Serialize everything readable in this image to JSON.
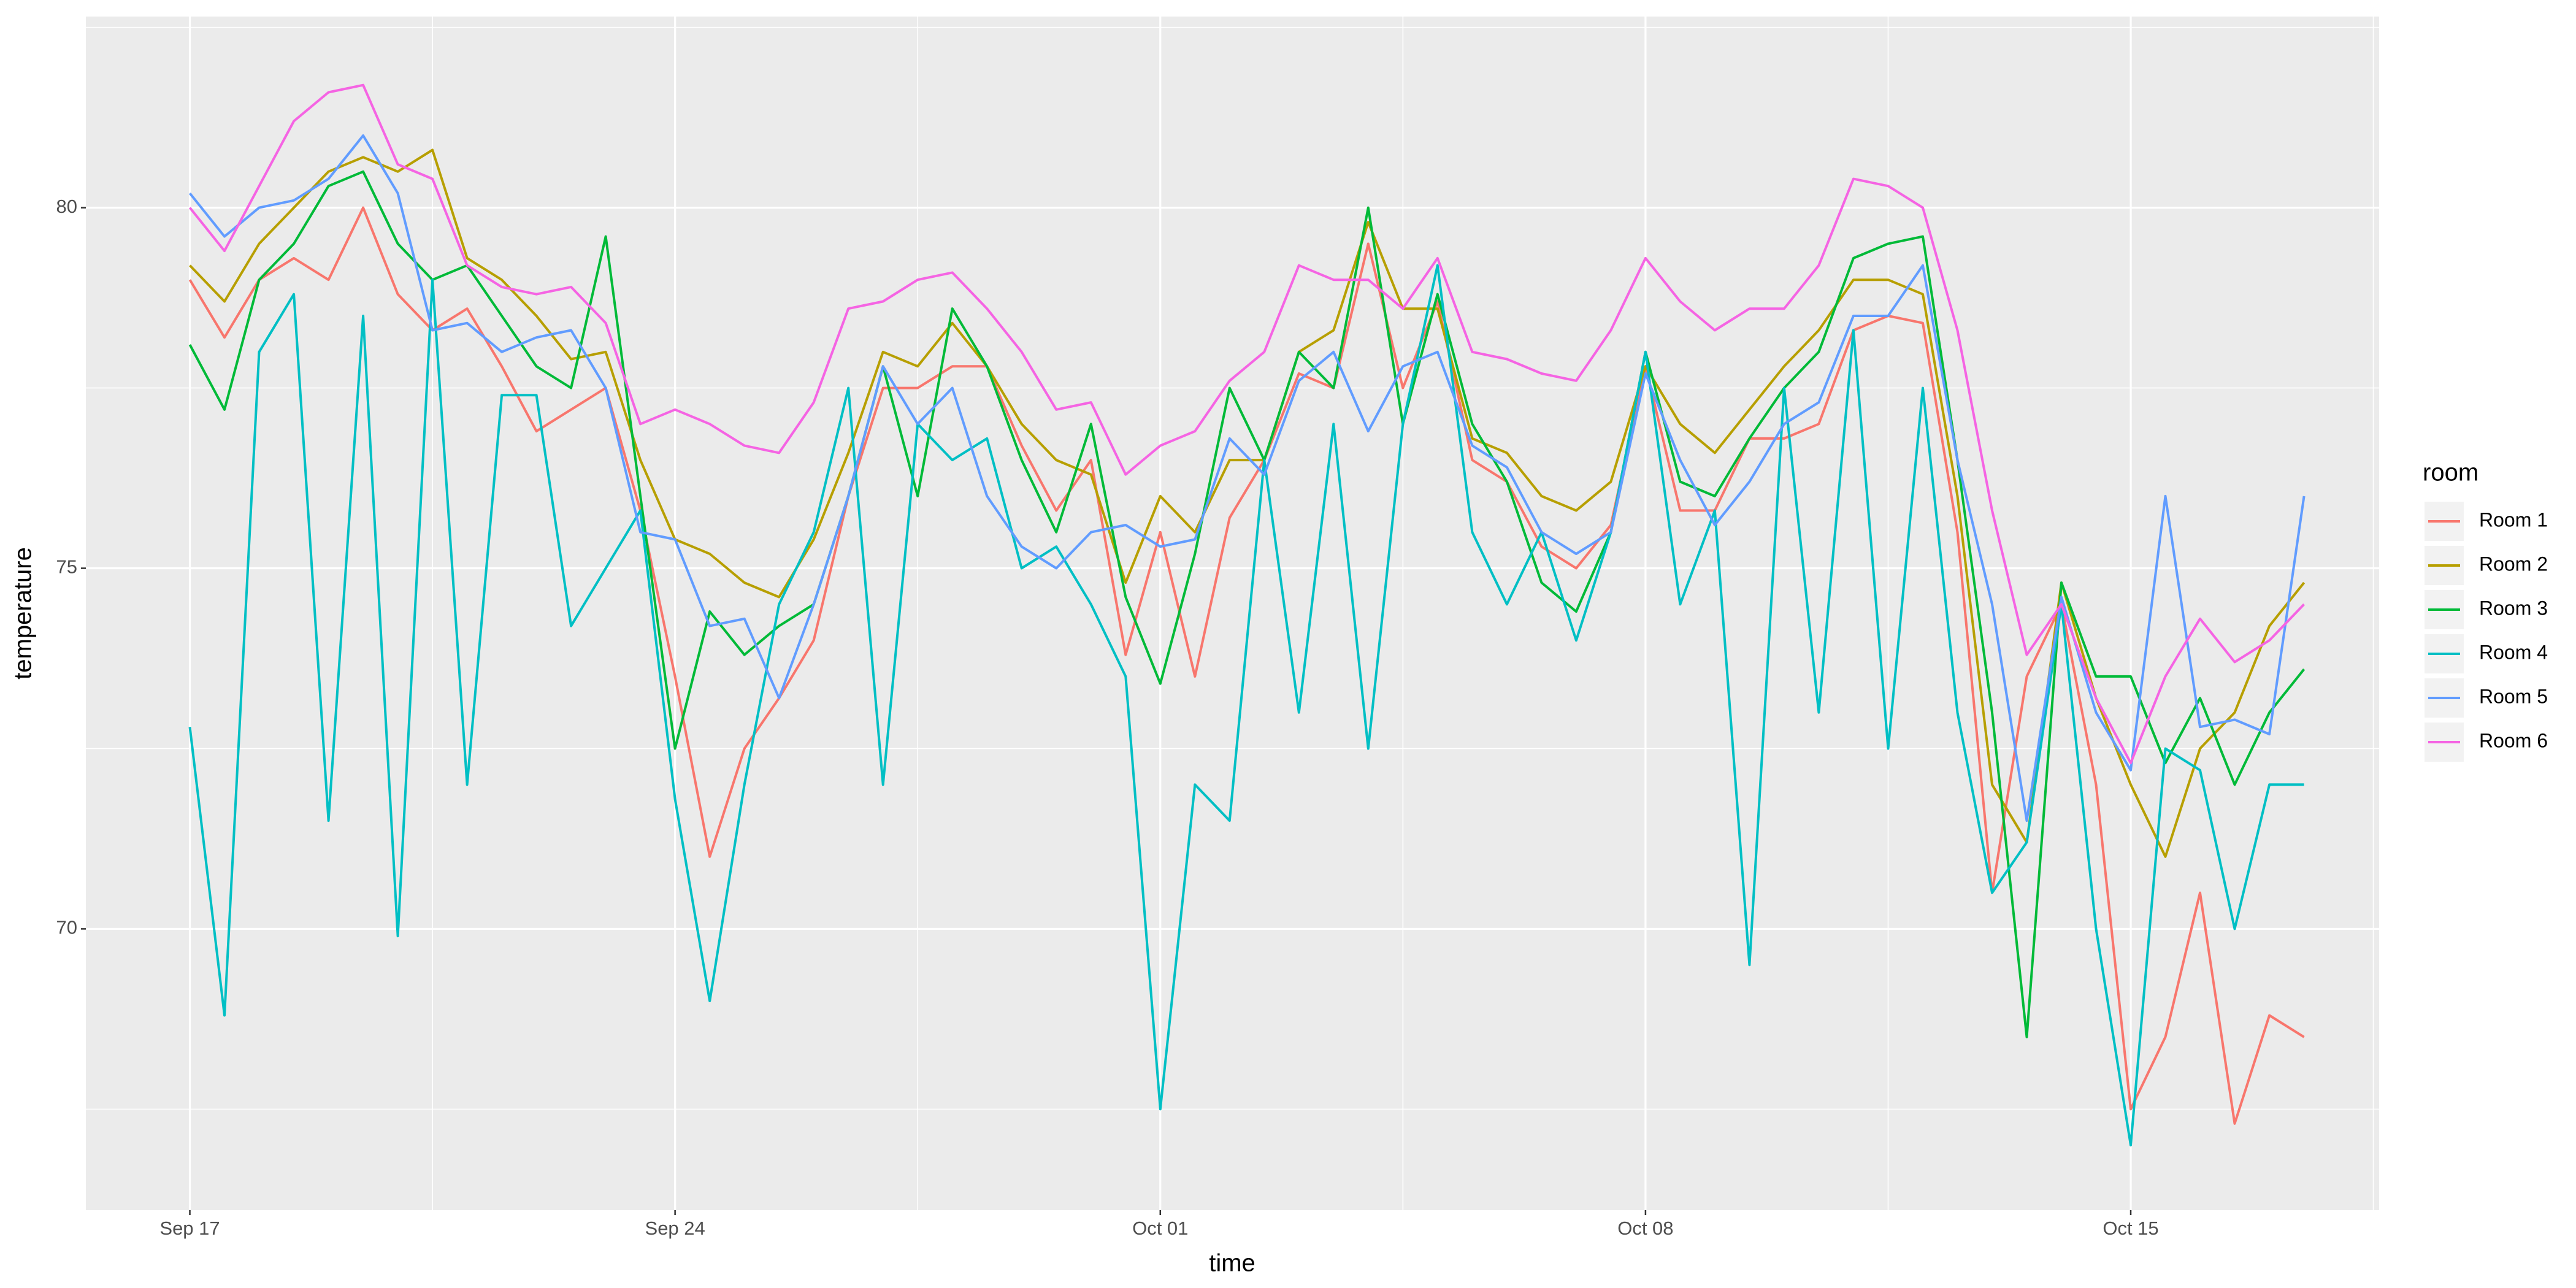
{
  "chart_data": {
    "type": "line",
    "x_label": "time",
    "y_label": "temperature",
    "legend_title": "room",
    "x": [
      "Sep 17",
      "Sep 17 12:00",
      "Sep 18",
      "Sep 18 12:00",
      "Sep 19",
      "Sep 19 12:00",
      "Sep 20",
      "Sep 20 12:00",
      "Sep 21",
      "Sep 21 12:00",
      "Sep 22",
      "Sep 22 12:00",
      "Sep 23",
      "Sep 23 12:00",
      "Sep 24",
      "Sep 24 12:00",
      "Sep 25",
      "Sep 25 12:00",
      "Sep 26",
      "Sep 26 12:00",
      "Sep 27",
      "Sep 27 12:00",
      "Sep 28",
      "Sep 28 12:00",
      "Sep 29",
      "Sep 29 12:00",
      "Sep 30",
      "Sep 30 12:00",
      "Oct 01",
      "Oct 01 12:00",
      "Oct 02",
      "Oct 02 12:00",
      "Oct 03",
      "Oct 03 12:00",
      "Oct 04",
      "Oct 04 12:00",
      "Oct 05",
      "Oct 05 12:00",
      "Oct 06",
      "Oct 06 12:00",
      "Oct 07",
      "Oct 07 12:00",
      "Oct 08",
      "Oct 08 12:00",
      "Oct 09",
      "Oct 09 12:00",
      "Oct 10",
      "Oct 10 12:00",
      "Oct 11",
      "Oct 11 12:00",
      "Oct 12",
      "Oct 12 12:00",
      "Oct 13",
      "Oct 13 12:00",
      "Oct 14",
      "Oct 14 12:00",
      "Oct 15",
      "Oct 15 12:00",
      "Oct 16",
      "Oct 16 12:00",
      "Oct 17",
      "Oct 17 12:00"
    ],
    "series": [
      {
        "name": "Room 1",
        "color": "#F8766D",
        "values": [
          79.0,
          78.2,
          79.0,
          79.3,
          79.0,
          80.0,
          78.8,
          78.3,
          78.6,
          77.8,
          76.9,
          77.2,
          77.5,
          75.8,
          73.5,
          71.0,
          72.5,
          73.2,
          74.0,
          76.0,
          77.5,
          77.5,
          77.8,
          77.8,
          76.7,
          75.8,
          76.5,
          73.8,
          75.5,
          73.5,
          75.7,
          76.5,
          77.7,
          77.5,
          79.5,
          77.5,
          78.7,
          76.5,
          76.2,
          75.3,
          75.0,
          75.6,
          77.8,
          75.8,
          75.8,
          76.8,
          76.8,
          77.0,
          78.3,
          78.5,
          78.4,
          75.5,
          70.5,
          73.5,
          74.5,
          72.0,
          67.5,
          68.5,
          70.5,
          67.3,
          68.8,
          68.5
        ]
      },
      {
        "name": "Room 2",
        "color": "#B79F00",
        "values": [
          79.2,
          78.7,
          79.5,
          80.0,
          80.5,
          80.7,
          80.5,
          80.8,
          79.3,
          79.0,
          78.5,
          77.9,
          78.0,
          76.5,
          75.4,
          75.2,
          74.8,
          74.6,
          75.4,
          76.6,
          78.0,
          77.8,
          78.4,
          77.8,
          77.0,
          76.5,
          76.3,
          74.8,
          76.0,
          75.5,
          76.5,
          76.5,
          78.0,
          78.3,
          79.8,
          78.6,
          78.6,
          76.8,
          76.6,
          76.0,
          75.8,
          76.2,
          77.8,
          77.0,
          76.6,
          77.2,
          77.8,
          78.3,
          79.0,
          79.0,
          78.8,
          76.0,
          72.0,
          71.2,
          74.8,
          73.2,
          72.0,
          71.0,
          72.5,
          73.0,
          74.2,
          74.8
        ]
      },
      {
        "name": "Room 3",
        "color": "#00BA38",
        "values": [
          78.1,
          77.2,
          79.0,
          79.5,
          80.3,
          80.5,
          79.5,
          79.0,
          79.2,
          78.5,
          77.8,
          77.5,
          79.6,
          76.0,
          72.5,
          74.4,
          73.8,
          74.2,
          74.5,
          76.0,
          77.8,
          76.0,
          78.6,
          77.8,
          76.5,
          75.5,
          77.0,
          74.6,
          73.4,
          75.2,
          77.5,
          76.5,
          78.0,
          77.5,
          80.0,
          77.0,
          78.8,
          77.0,
          76.2,
          74.8,
          74.4,
          75.5,
          78.0,
          76.2,
          76.0,
          76.8,
          77.5,
          78.0,
          79.3,
          79.5,
          79.6,
          76.5,
          73.0,
          68.5,
          74.8,
          73.5,
          73.5,
          72.3,
          73.2,
          72.0,
          73.0,
          73.6
        ]
      },
      {
        "name": "Room 4",
        "color": "#00BFC4",
        "values": [
          72.8,
          68.8,
          78.0,
          78.8,
          71.5,
          78.5,
          69.9,
          79.0,
          72.0,
          77.4,
          77.4,
          74.2,
          75.0,
          75.8,
          71.8,
          69.0,
          72.0,
          74.5,
          75.5,
          77.5,
          72.0,
          77.0,
          76.5,
          76.8,
          75.0,
          75.3,
          74.5,
          73.5,
          67.5,
          72.0,
          71.5,
          76.5,
          73.0,
          77.0,
          72.5,
          77.0,
          79.2,
          75.5,
          74.5,
          75.5,
          74.0,
          75.5,
          78.0,
          74.5,
          75.8,
          69.5,
          77.5,
          73.0,
          78.3,
          72.5,
          77.5,
          73.0,
          70.5,
          71.2,
          74.5,
          70.0,
          67.0,
          72.5,
          72.2,
          70.0,
          72.0,
          72.0
        ]
      },
      {
        "name": "Room 5",
        "color": "#619CFF",
        "values": [
          80.2,
          79.6,
          80.0,
          80.1,
          80.4,
          81.0,
          80.2,
          78.3,
          78.4,
          78.0,
          78.2,
          78.3,
          77.5,
          75.5,
          75.4,
          74.2,
          74.3,
          73.2,
          74.5,
          76.0,
          77.8,
          77.0,
          77.5,
          76.0,
          75.3,
          75.0,
          75.5,
          75.6,
          75.3,
          75.4,
          76.8,
          76.3,
          77.6,
          78.0,
          76.9,
          77.8,
          78.0,
          76.7,
          76.4,
          75.5,
          75.2,
          75.5,
          77.7,
          76.5,
          75.6,
          76.2,
          77.0,
          77.3,
          78.5,
          78.5,
          79.2,
          76.5,
          74.5,
          71.5,
          74.6,
          73.0,
          72.2,
          76.0,
          72.8,
          72.9,
          72.7,
          76.0
        ]
      },
      {
        "name": "Room 6",
        "color": "#F564E3",
        "values": [
          80.0,
          79.4,
          80.3,
          81.2,
          81.6,
          81.7,
          80.6,
          80.4,
          79.2,
          78.9,
          78.8,
          78.9,
          78.4,
          77.0,
          77.2,
          77.0,
          76.7,
          76.6,
          77.3,
          78.6,
          78.7,
          79.0,
          79.1,
          78.6,
          78.0,
          77.2,
          77.3,
          76.3,
          76.7,
          76.9,
          77.6,
          78.0,
          79.2,
          79.0,
          79.0,
          78.6,
          79.3,
          78.0,
          77.9,
          77.7,
          77.6,
          78.3,
          79.3,
          78.7,
          78.3,
          78.6,
          78.6,
          79.2,
          80.4,
          80.3,
          80.0,
          78.3,
          75.8,
          73.8,
          74.5,
          73.2,
          72.3,
          73.5,
          74.3,
          73.7,
          74.0,
          74.5
        ]
      }
    ],
    "xlim": [
      "Sep 15 12:00",
      "Oct 18 14:00"
    ],
    "xticks": [
      "Sep 17",
      "Sep 24",
      "Oct 01",
      "Oct 08",
      "Oct 15"
    ],
    "ylim": [
      66.1,
      82.65
    ],
    "yticks": [
      70,
      75,
      80
    ],
    "grid": true,
    "legend": "right"
  }
}
